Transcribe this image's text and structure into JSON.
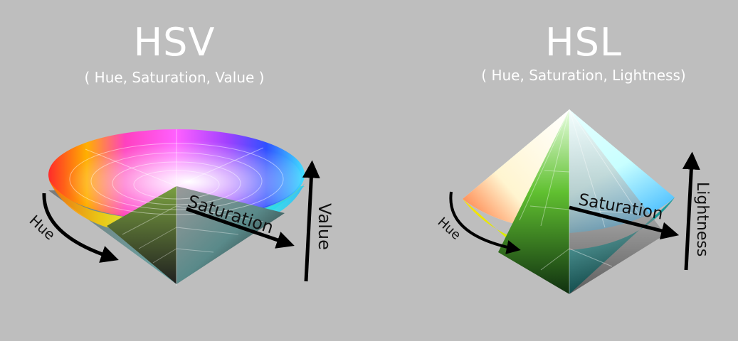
{
  "hsv": {
    "title": "HSV",
    "subtitle": "( Hue, Saturation, Value )",
    "labels": {
      "hue": "Hue",
      "saturation": "Saturation",
      "value": "Value"
    }
  },
  "hsl": {
    "title": "HSL",
    "subtitle": "( Hue, Saturation, Lightness)",
    "labels": {
      "hue": "Hue",
      "saturation": "Saturation",
      "lightness": "Lightness"
    }
  },
  "colors": {
    "background": "#bebebe",
    "text": "#ffffff",
    "arrow": "#000000"
  }
}
